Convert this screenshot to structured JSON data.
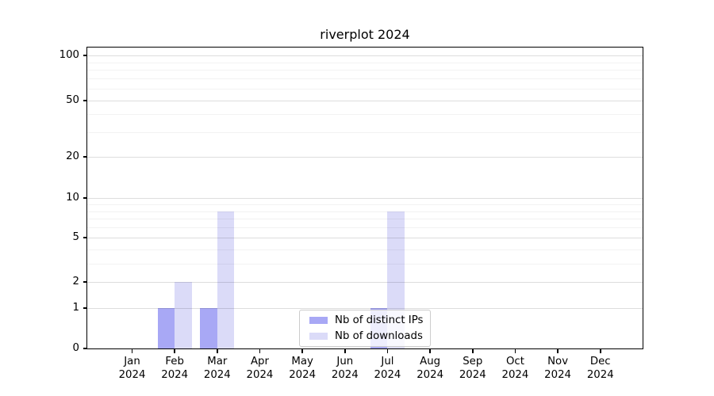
{
  "chart_data": {
    "type": "bar",
    "title": "riverplot 2024",
    "categories": [
      "Jan",
      "Feb",
      "Mar",
      "Apr",
      "May",
      "Jun",
      "Jul",
      "Aug",
      "Sep",
      "Oct",
      "Nov",
      "Dec"
    ],
    "year_label": "2024",
    "series": [
      {
        "name": "Nb of distinct IPs",
        "color": "#a8a8f5",
        "values": [
          0,
          1,
          1,
          0,
          0,
          0,
          1,
          0,
          0,
          0,
          0,
          0
        ]
      },
      {
        "name": "Nb of downloads",
        "color": "#dbdbf8",
        "values": [
          0,
          2,
          8,
          0,
          0,
          0,
          8,
          0,
          0,
          0,
          0,
          0
        ]
      }
    ],
    "xlabel": "",
    "ylabel": "",
    "yscale": "log-like (log1p)",
    "ylim": [
      0,
      113
    ],
    "yticks": [
      0,
      1,
      2,
      5,
      10,
      20,
      50,
      100
    ],
    "minor_yticks": [
      3,
      4,
      6,
      7,
      8,
      9,
      30,
      40,
      60,
      70,
      80,
      90
    ],
    "grid": true,
    "legend": {
      "position": "lower center inside plot",
      "labels": [
        "Nb of distinct IPs",
        "Nb of downloads"
      ]
    }
  },
  "colors": {
    "axis": "#000000",
    "background": "#ffffff",
    "major_grid": "rgba(0,0,0,0.135)",
    "minor_grid": "rgba(0,0,0,0.05)",
    "legend_border": "#cccccc"
  }
}
